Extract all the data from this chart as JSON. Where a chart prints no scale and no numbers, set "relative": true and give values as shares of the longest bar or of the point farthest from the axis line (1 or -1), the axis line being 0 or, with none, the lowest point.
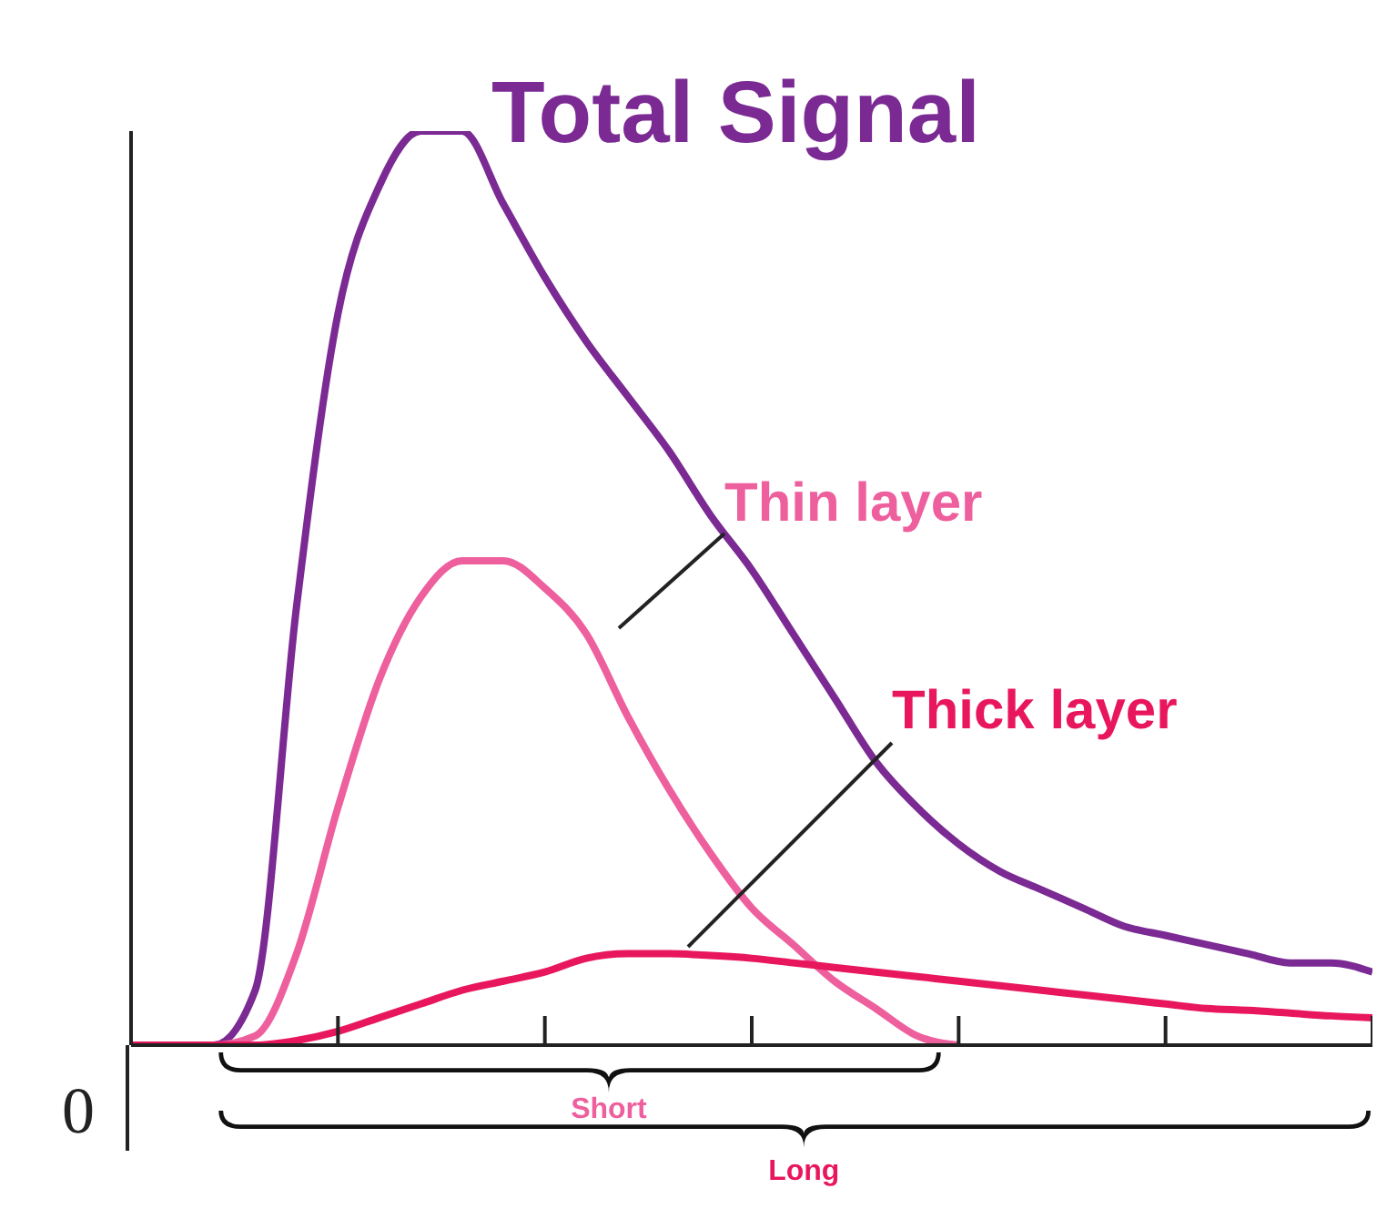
{
  "chart_data": {
    "type": "line",
    "relative": true,
    "grid": false,
    "legend": false,
    "marker": "none",
    "line_style": "solid",
    "categories": [
      null,
      null,
      null,
      null,
      null,
      null,
      null,
      null,
      null,
      null,
      null,
      null,
      null,
      null,
      null,
      null,
      null,
      null,
      null,
      null,
      null,
      null,
      null,
      null,
      null,
      null,
      null,
      null,
      null,
      null,
      null
    ],
    "series": [
      {
        "name": "Total Signal",
        "color": "#7b2a93",
        "values": [
          0,
          0,
          0,
          0.06,
          0.48,
          0.8,
          0.94,
          1,
          1,
          0.92,
          0.84,
          0.77,
          0.71,
          0.65,
          0.58,
          0.52,
          0.45,
          0.38,
          0.31,
          0.26,
          0.22,
          0.19,
          0.17,
          0.15,
          0.13,
          0.12,
          0.11,
          0.1,
          0.09,
          0.09,
          0.08
        ]
      },
      {
        "name": "Thin layer",
        "color": "#ee5f9d",
        "values": [
          0,
          0,
          0,
          0.01,
          0.1,
          0.26,
          0.4,
          0.49,
          0.53,
          0.53,
          0.5,
          0.45,
          0.36,
          0.28,
          0.21,
          0.15,
          0.11,
          0.07,
          0.04,
          0.01,
          0,
          null,
          null,
          null,
          null,
          null,
          null,
          null,
          null,
          null,
          null
        ]
      },
      {
        "name": "Thick layer",
        "color": "#e8175d",
        "values": [
          0,
          0,
          0,
          0,
          0.005,
          0.015,
          0.03,
          0.045,
          0.06,
          0.07,
          0.08,
          0.095,
          0.1,
          0.1,
          0.098,
          0.095,
          0.09,
          0.085,
          0.08,
          0.075,
          0.07,
          0.065,
          0.06,
          0.055,
          0.05,
          0.045,
          0.04,
          0.038,
          0.035,
          0.032,
          0.03
        ]
      }
    ],
    "annotations": [
      "0",
      "Short",
      "Long"
    ]
  }
}
